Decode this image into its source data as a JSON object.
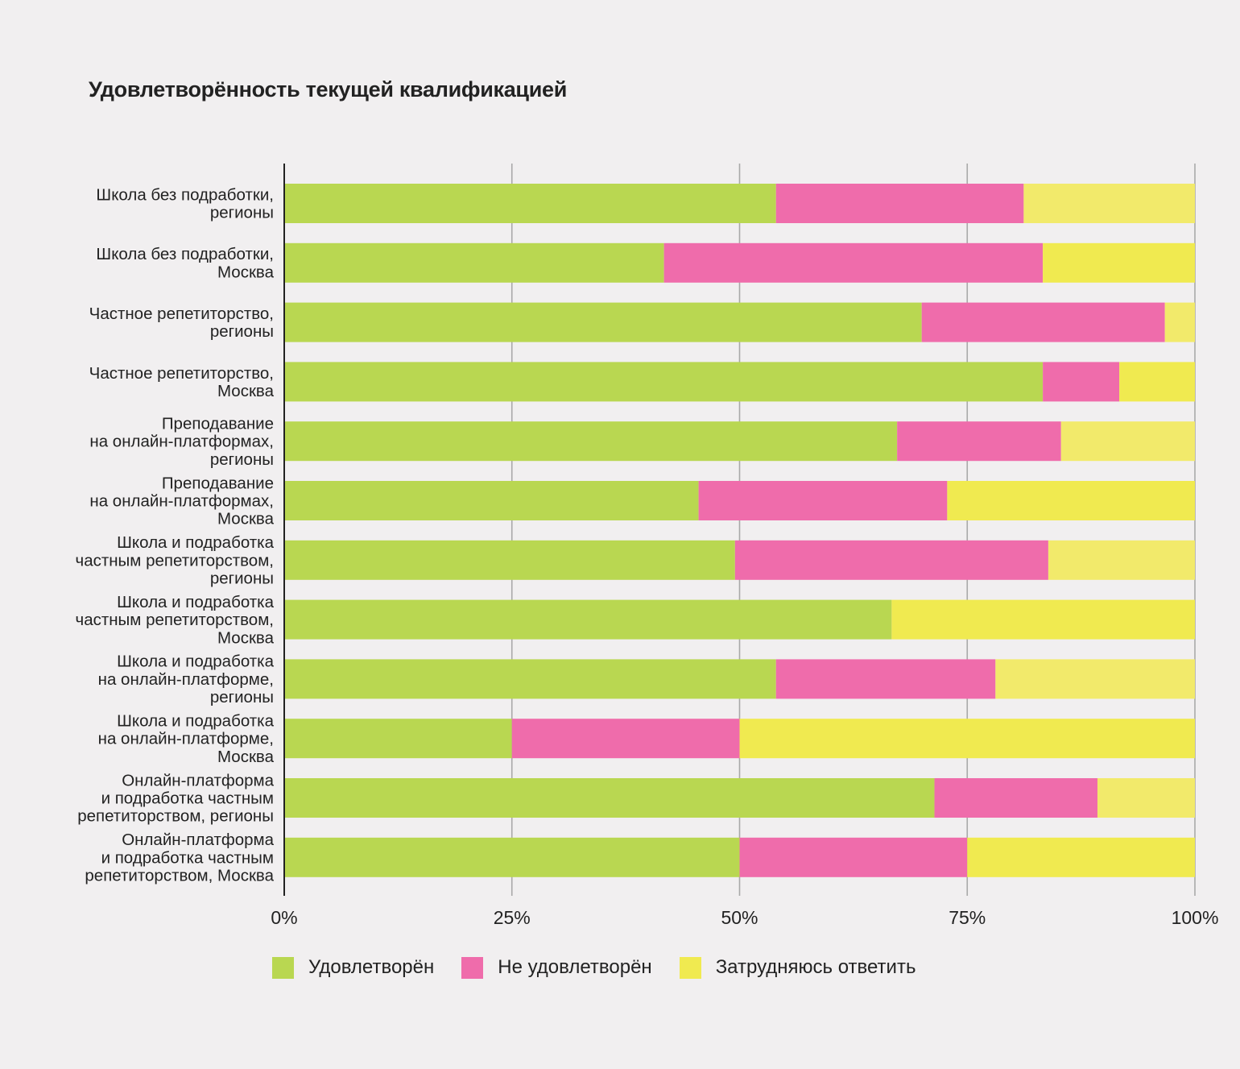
{
  "chart_data": {
    "type": "bar",
    "orientation": "horizontal",
    "stacked": true,
    "title": "Удовлетворённость текущей квалификацией",
    "xlabel": "",
    "ylabel": "",
    "xlim": [
      0,
      100
    ],
    "x_ticks": [
      "0%",
      "25%",
      "50%",
      "75%",
      "100%"
    ],
    "grid": true,
    "legend_position": "bottom",
    "categories": [
      [
        "Школа без подработки,",
        "регионы"
      ],
      [
        "Школа без подработки,",
        "Москва"
      ],
      [
        "Частное репетиторство,",
        "регионы"
      ],
      [
        "Частное репетиторство,",
        "Москва"
      ],
      [
        "Преподавание",
        "на онлайн-платформах,",
        "регионы"
      ],
      [
        "Преподавание",
        "на онлайн-платформах,",
        "Москва"
      ],
      [
        "Школа и подработка",
        "частным репетиторством,",
        "регионы"
      ],
      [
        "Школа и подработка",
        "частным репетиторством,",
        "Москва"
      ],
      [
        "Школа и подработка",
        "на онлайн-платформе,",
        "регионы"
      ],
      [
        "Школа и подработка",
        "на онлайн-платформе,",
        "Москва"
      ],
      [
        "Онлайн-платформа",
        "и подработка частным",
        "репетиторством, регионы"
      ],
      [
        "Онлайн-платформа",
        "и подработка частным",
        "репетиторством, Москва"
      ]
    ],
    "series": [
      {
        "name": "Удовлетворён",
        "color": "#b9d751",
        "values": [
          54,
          41.7,
          70,
          83.3,
          67.3,
          45.5,
          49.5,
          66.7,
          54,
          25,
          71.4,
          50
        ]
      },
      {
        "name": "Не удовлетворён",
        "color": "#ef6cab",
        "values": [
          27.2,
          41.6,
          26.7,
          8.4,
          18,
          27.3,
          34.4,
          0,
          24.1,
          25,
          17.9,
          25
        ]
      },
      {
        "name": "Затрудняюсь ответить",
        "colors": [
          "#f2ea6b",
          "#f0ea50",
          "#f2ea6b",
          "#f0ea50",
          "#f2ea6b",
          "#f0ea50",
          "#f2ea6b",
          "#f0ea50",
          "#f2ea6b",
          "#f0ea50",
          "#f2ea6b",
          "#f0ea50"
        ],
        "color": "#f0ea50",
        "values": [
          18.8,
          16.7,
          3.3,
          8.3,
          14.7,
          27.2,
          16.1,
          33.3,
          21.9,
          50,
          10.7,
          25
        ]
      }
    ]
  },
  "legend": [
    {
      "label": "Удовлетворён",
      "color": "#b9d751"
    },
    {
      "label": "Не удовлетворён",
      "color": "#ef6cab"
    },
    {
      "label": "Затрудняюсь ответить",
      "color": "#f0ea50"
    }
  ]
}
